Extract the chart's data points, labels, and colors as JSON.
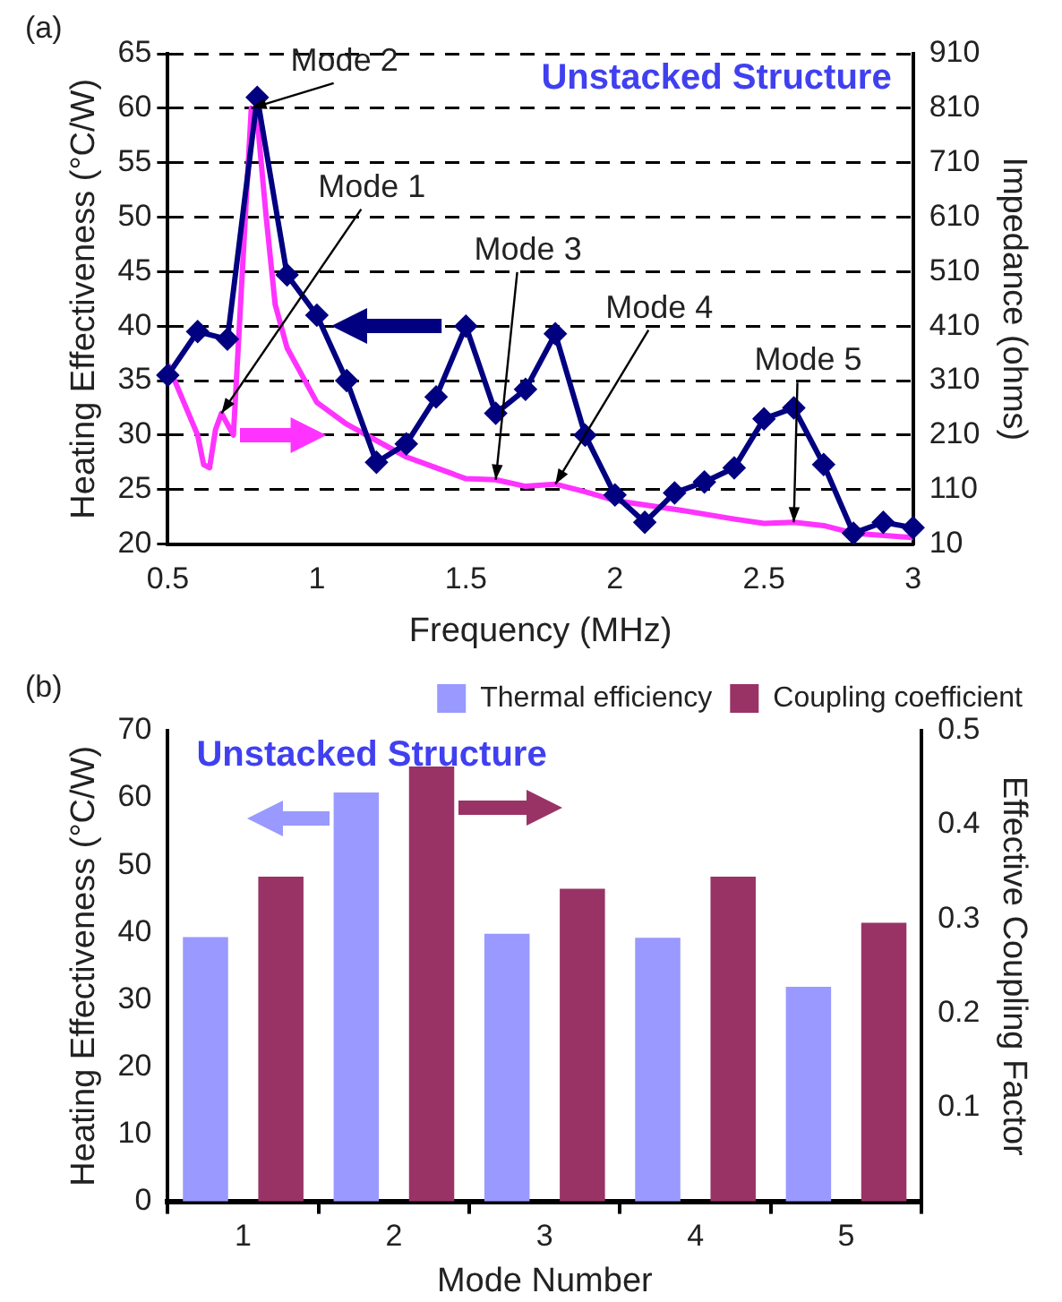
{
  "chart_data": [
    {
      "type": "line",
      "title": "Unstacked Structure",
      "xlabel": "Frequency (MHz)",
      "ylabel": "Heating Effectiveness (°C/W)",
      "y2label": "Impedance (ohms)",
      "annotations": [
        "(a)",
        {
          "text": "Mode 1",
          "x": 0.68,
          "y": 32
        },
        {
          "text": "Mode 2",
          "x": 0.78,
          "y": 60
        },
        {
          "text": "Mode 3",
          "x": 1.6,
          "y": 25.9
        },
        {
          "text": "Mode 4",
          "x": 1.8,
          "y": 25.5
        },
        {
          "text": "Mode 5",
          "x": 2.6,
          "y": 22
        }
      ],
      "series": [
        {
          "color": "#000080",
          "marker": "diamond",
          "x": [
            0.5,
            0.6,
            0.7,
            0.8,
            0.9,
            1.0,
            1.1,
            1.2,
            1.3,
            1.4,
            1.5,
            1.6,
            1.7,
            1.8,
            1.9,
            2.0,
            2.1,
            2.2,
            2.3,
            2.4,
            2.5,
            2.6,
            2.7,
            2.8,
            2.9,
            3.0
          ],
          "values": [
            35.5,
            39.5,
            38.8,
            61,
            44.7,
            41,
            35,
            27.5,
            29.2,
            33.5,
            40,
            32,
            34.2,
            39.3,
            30,
            24.5,
            22,
            24.7,
            25.7,
            27,
            31.5,
            32.5,
            27.3,
            21,
            22,
            21.5
          ]
        },
        {
          "color": "#ff33ff",
          "marker": "none",
          "axis": "y2",
          "x": [
            0.5,
            0.6,
            0.62,
            0.64,
            0.66,
            0.68,
            0.7,
            0.72,
            0.75,
            0.78,
            0.8,
            0.83,
            0.86,
            0.9,
            1.0,
            1.1,
            1.2,
            1.3,
            1.4,
            1.5,
            1.6,
            1.7,
            1.8,
            1.9,
            2.0,
            2.2,
            2.4,
            2.5,
            2.6,
            2.7,
            2.8,
            3.0
          ],
          "values": [
            340,
            210,
            156,
            150,
            220,
            250,
            230,
            210,
            510,
            810,
            790,
            610,
            450,
            370,
            270,
            230,
            200,
            170,
            150,
            130,
            128,
            116,
            120,
            106,
            90,
            74,
            56,
            48,
            50,
            44,
            30,
            22
          ]
        }
      ],
      "xlim": [
        0.5,
        3
      ],
      "xticks": [
        0.5,
        1,
        1.5,
        2,
        2.5,
        3
      ],
      "ylim": [
        20,
        65
      ],
      "yticks": [
        20,
        25,
        30,
        35,
        40,
        45,
        50,
        55,
        60,
        65
      ],
      "y2lim": [
        10,
        910
      ],
      "y2ticks": [
        10,
        110,
        210,
        310,
        410,
        510,
        610,
        710,
        810,
        910
      ],
      "grid": "y",
      "legend": false,
      "line_style": "solid"
    },
    {
      "type": "bar",
      "title": "Unstacked Structure",
      "xlabel": "Mode Number",
      "ylabel": "Heating Effectiveness (°C/W)",
      "y2label": "Effective Coupling Factor",
      "annotations": [
        "(b)"
      ],
      "categories": [
        "1",
        "2",
        "3",
        "4",
        "5"
      ],
      "series": [
        {
          "name": "Thermal efficiency",
          "color": "#9999ff",
          "values": [
            39.3,
            60.8,
            39.8,
            39.2,
            31.9
          ]
        },
        {
          "name": "Coupling coefficient",
          "color": "#993366",
          "axis": "y2",
          "values": [
            0.345,
            0.462,
            0.332,
            0.345,
            0.296
          ]
        }
      ],
      "ylim": [
        0,
        70
      ],
      "yticks": [
        0,
        10,
        20,
        30,
        40,
        50,
        60,
        70
      ],
      "y2lim": [
        0,
        0.5
      ],
      "y2ticks": [
        0.1,
        0.2,
        0.3,
        0.4,
        0.5
      ],
      "grid": false,
      "legend": "top right"
    }
  ]
}
